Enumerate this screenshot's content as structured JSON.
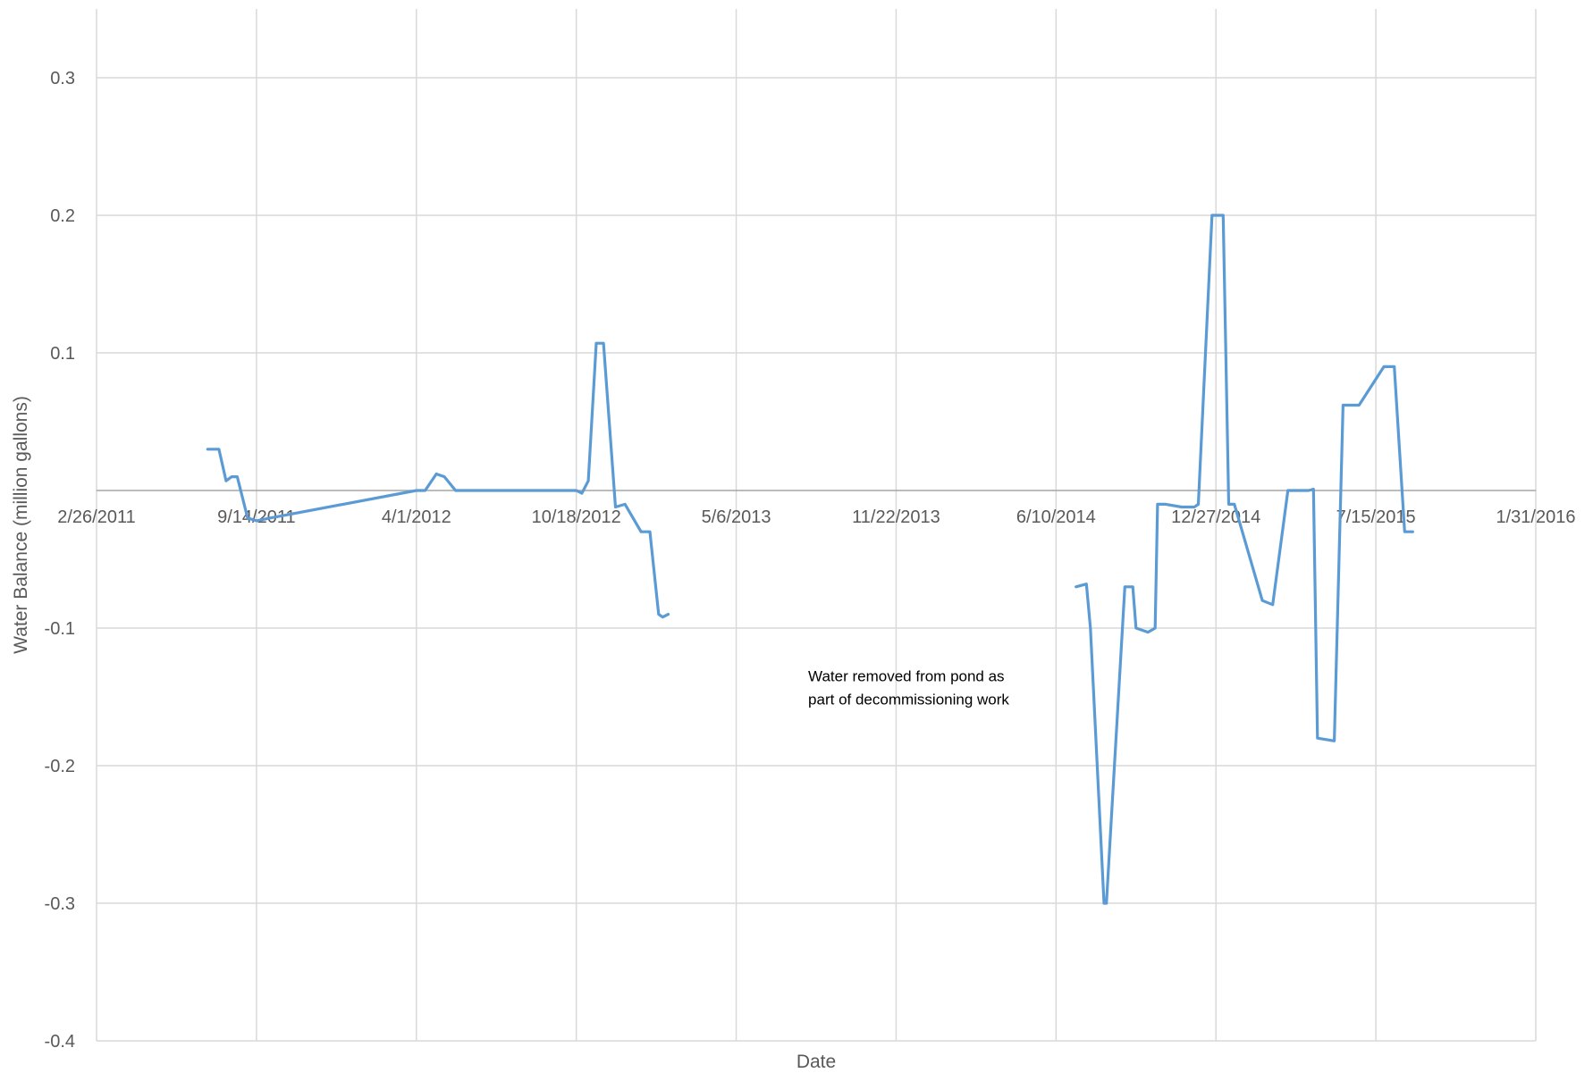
{
  "chart_data": {
    "type": "line",
    "title": "",
    "xlabel": "Date",
    "ylabel": "Water Balance (million gallons)",
    "xlim": [
      "2011-02-26",
      "2016-01-31"
    ],
    "ylim": [
      -0.4,
      0.35
    ],
    "x_ticks": [
      "2/26/2011",
      "9/14/2011",
      "4/1/2012",
      "10/18/2012",
      "5/6/2013",
      "11/22/2013",
      "6/10/2014",
      "12/27/2014",
      "7/15/2015",
      "1/31/2016"
    ],
    "y_ticks": [
      -0.4,
      -0.3,
      -0.2,
      -0.1,
      0.1,
      0.2,
      0.3
    ],
    "y_tick_labels": [
      "-0.4",
      "-0.3",
      "-0.2",
      "-0.1",
      "0.1",
      "0.2",
      "0.3"
    ],
    "grid": true,
    "legend": "none",
    "color": "#5b9bd5",
    "annotation": {
      "lines": [
        "Water removed from pond as",
        "part of decommissioning work"
      ],
      "x": "2013-08-04",
      "y": -0.145
    },
    "series": [
      {
        "segments": [
          [
            [
              "2011-07-15",
              0.03
            ],
            [
              "2011-07-29",
              0.03
            ],
            [
              "2011-08-07",
              0.007
            ],
            [
              "2011-08-14",
              0.01
            ],
            [
              "2011-08-21",
              0.01
            ],
            [
              "2011-09-03",
              -0.02
            ],
            [
              "2011-09-14",
              -0.022
            ],
            [
              "2011-10-01",
              -0.02
            ],
            [
              "2012-04-01",
              0.0
            ],
            [
              "2012-04-12",
              0.0
            ],
            [
              "2012-04-26",
              0.012
            ],
            [
              "2012-05-06",
              0.01
            ],
            [
              "2012-05-20",
              0.0
            ],
            [
              "2012-10-18",
              0.0
            ],
            [
              "2012-10-25",
              -0.002
            ],
            [
              "2012-11-02",
              0.007
            ],
            [
              "2012-11-12",
              0.107
            ],
            [
              "2012-11-21",
              0.107
            ],
            [
              "2012-12-06",
              -0.012
            ],
            [
              "2012-12-18",
              -0.01
            ],
            [
              "2013-01-07",
              -0.03
            ],
            [
              "2013-01-18",
              -0.03
            ],
            [
              "2013-01-29",
              -0.09
            ],
            [
              "2013-02-03",
              -0.092
            ],
            [
              "2013-02-10",
              -0.09
            ]
          ],
          [
            [
              "2014-07-05",
              -0.07
            ],
            [
              "2014-07-18",
              -0.068
            ],
            [
              "2014-07-23",
              -0.1
            ],
            [
              "2014-08-09",
              -0.3
            ],
            [
              "2014-08-12",
              -0.3
            ],
            [
              "2014-09-04",
              -0.07
            ],
            [
              "2014-09-14",
              -0.07
            ],
            [
              "2014-09-18",
              -0.1
            ],
            [
              "2014-10-03",
              -0.103
            ],
            [
              "2014-10-12",
              -0.1
            ],
            [
              "2014-10-15",
              -0.01
            ],
            [
              "2014-10-25",
              -0.01
            ],
            [
              "2014-11-14",
              -0.012
            ],
            [
              "2014-11-30",
              -0.012
            ],
            [
              "2014-12-05",
              -0.01
            ],
            [
              "2014-12-22",
              0.2
            ],
            [
              "2015-01-05",
              0.2
            ],
            [
              "2015-01-12",
              -0.01
            ],
            [
              "2015-01-19",
              -0.01
            ],
            [
              "2015-02-23",
              -0.08
            ],
            [
              "2015-03-08",
              -0.083
            ],
            [
              "2015-03-27",
              0.0
            ],
            [
              "2015-04-22",
              0.0
            ],
            [
              "2015-04-28",
              0.001
            ],
            [
              "2015-05-03",
              -0.18
            ],
            [
              "2015-05-24",
              -0.182
            ],
            [
              "2015-06-04",
              0.062
            ],
            [
              "2015-06-24",
              0.062
            ],
            [
              "2015-07-25",
              0.09
            ],
            [
              "2015-08-07",
              0.09
            ],
            [
              "2015-08-20",
              -0.03
            ],
            [
              "2015-08-30",
              -0.03
            ]
          ]
        ]
      }
    ]
  }
}
